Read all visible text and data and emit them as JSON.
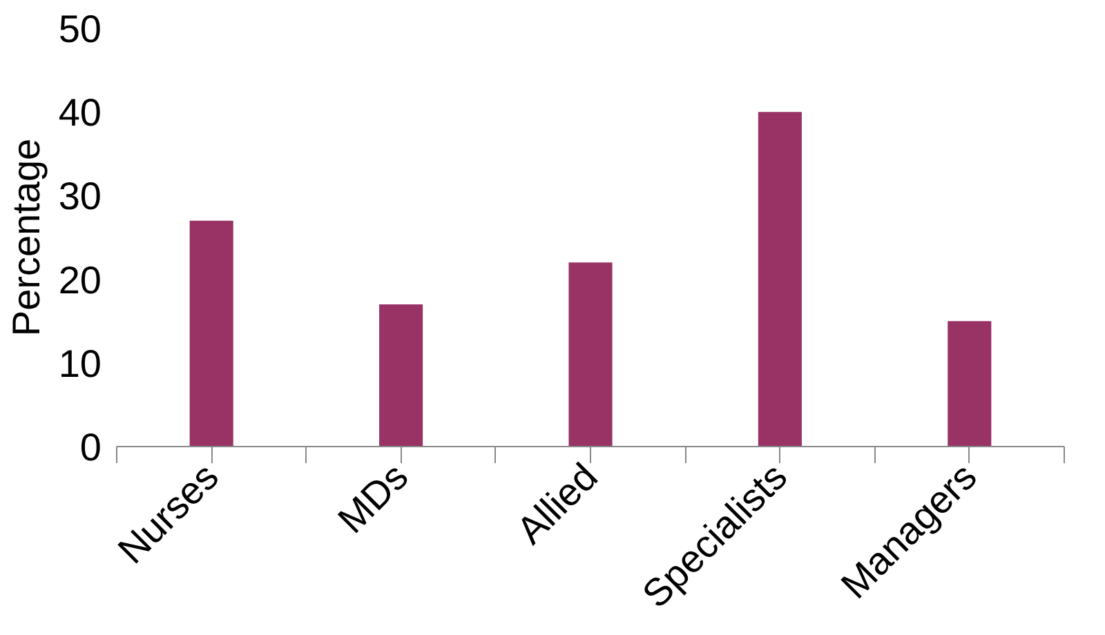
{
  "chart_data": {
    "type": "bar",
    "ylabel": "Percentage",
    "categories": [
      "Nurses",
      "MDs",
      "Allied",
      "Specialists",
      "Managers"
    ],
    "values": [
      27,
      17,
      22,
      40,
      15
    ],
    "color": "#993366",
    "ylim": [
      0,
      50
    ],
    "yticks": [
      0,
      10,
      20,
      30,
      40,
      50
    ],
    "grid": false
  }
}
